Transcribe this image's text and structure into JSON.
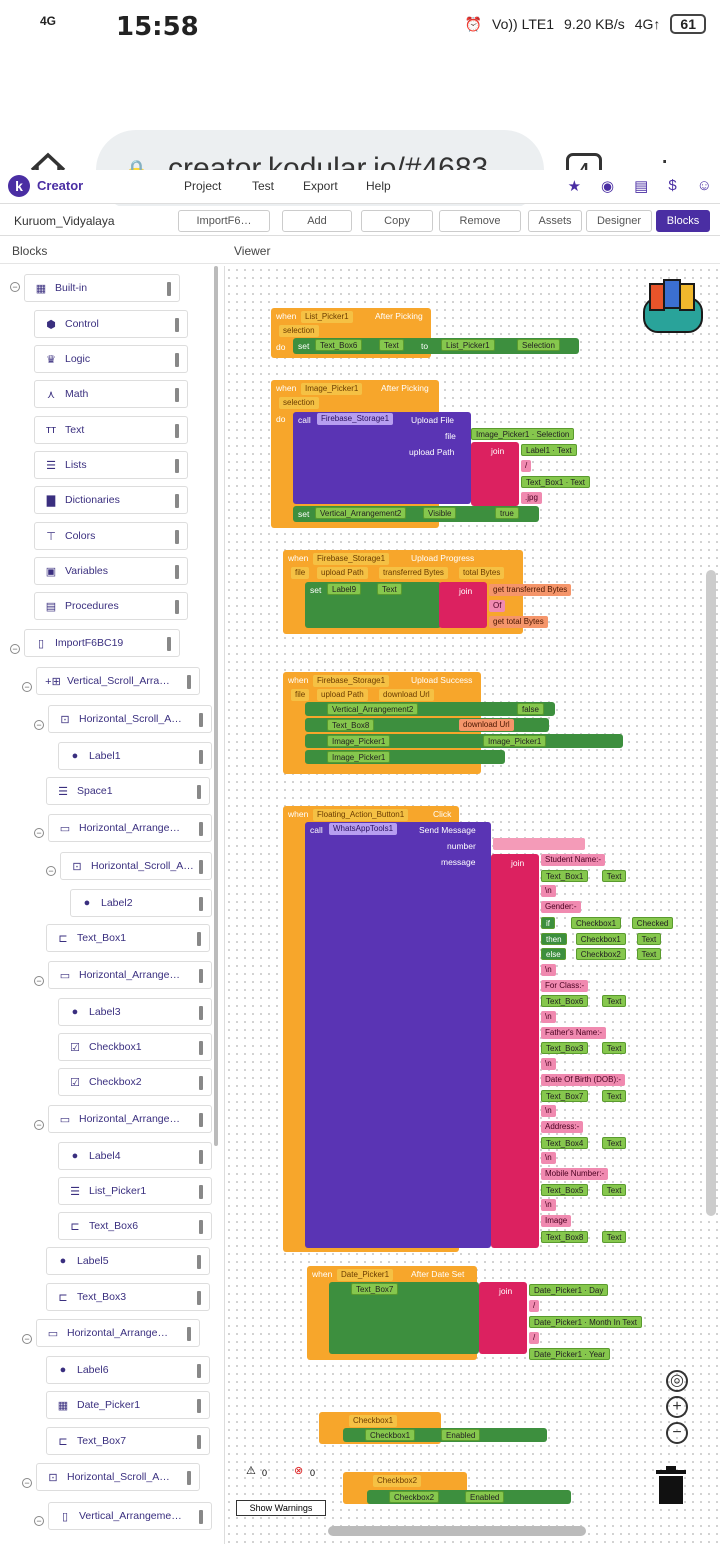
{
  "status": {
    "time": "15:58",
    "signal": "4G",
    "net": "Vo)) LTE1",
    "speed": "9.20 KB/s",
    "net2": "4G↑",
    "battery": "61"
  },
  "browser": {
    "url": "creator.kodular.io/#4683",
    "tabs": "4"
  },
  "app": {
    "brand": "Creator",
    "menu": [
      "Project",
      "Test",
      "Export",
      "Help"
    ]
  },
  "toolbar": {
    "project": "Kuruom_Vidyalaya",
    "screen": "ImportF6…",
    "add": "Add",
    "copy": "Copy",
    "remove": "Remove",
    "assets": "Assets",
    "designer": "Designer",
    "blocks": "Blocks"
  },
  "panes": {
    "blocks": "Blocks",
    "viewer": "Viewer"
  },
  "tree": [
    "Built-in",
    "Control",
    "Logic",
    "Math",
    "Text",
    "Lists",
    "Dictionaries",
    "Colors",
    "Variables",
    "Procedures",
    "ImportF6BC19",
    "Vertical_Scroll_Arra…",
    "Horizontal_Scroll_A…",
    "Label1",
    "Space1",
    "Horizontal_Arrange…",
    "Horizontal_Scroll_A…",
    "Label2",
    "Text_Box1",
    "Horizontal_Arrange…",
    "Label3",
    "Checkbox1",
    "Checkbox2",
    "Horizontal_Arrange…",
    "Label4",
    "List_Picker1",
    "Text_Box6",
    "Label5",
    "Text_Box3",
    "Horizontal_Arrange…",
    "Label6",
    "Date_Picker1",
    "Text_Box7",
    "Horizontal_Scroll_A…",
    "Vertical_Arrangeme…"
  ],
  "b1": {
    "when": "when",
    "comp": "List_Picker1",
    "ev": "After Picking",
    "param": "selection",
    "do": "do",
    "set": "set",
    "tgt": "Text_Box6",
    "prop": "Text",
    "to": "to",
    "src": "List_Picker1",
    "srcp": "Selection"
  },
  "b2": {
    "comp": "Image_Picker1",
    "ev": "After Picking",
    "param": "selection",
    "call": "call",
    "fs": "Firebase_Storage1",
    "m": "Upload File",
    "file": "file",
    "up": "upload Path",
    "ip": "Image_Picker1",
    "sel": "Selection",
    "join": "join",
    "l1": "Label1",
    "t": "Text",
    "slash": "/",
    "tb1": "Text_Box1",
    "jpg": ".jpg",
    "va": "Vertical_Arrangement2",
    "vis": "Visible",
    "tr": "true"
  },
  "b3": {
    "comp": "Firebase_Storage1",
    "ev": "Upload Progress",
    "p1": "file",
    "p2": "upload Path",
    "p3": "transferred Bytes",
    "p4": "total Bytes",
    "tgt": "Label9",
    "get": "get",
    "tb": "transferred Bytes",
    "of": " Of ",
    "tot": "total Bytes"
  },
  "b4": {
    "comp": "Firebase_Storage1",
    "ev": "Upload Success",
    "p1": "file",
    "p2": "upload Path",
    "p3": "download Url",
    "va": "Vertical_Arrangement2",
    "fal": "false",
    "tb8": "Text_Box8",
    "du": "download Url",
    "ip": "Image_Picker1",
    "img": "Image",
    "sel": "Selection"
  },
  "b5": {
    "comp": "Floating_Action_Button1",
    "ev": "Click",
    "wa": "WhatsAppTools1",
    "m": "Send Message",
    "num": "number",
    "msg": "message",
    "lines": [
      "Student Name:-",
      "Text_Box1",
      "\\n",
      "Gender:-",
      "if",
      "Checkbox1",
      "Checked",
      "then",
      "Checkbox1",
      "Text",
      "else",
      "Checkbox2",
      "\\n",
      "For Class:-",
      "Text_Box6",
      "\\n",
      "Father's Name:-",
      "Text_Box3",
      "\\n",
      "Date Of Birth (DOB):-",
      "Text_Box7",
      "\\n",
      "Address:-",
      "Text_Box4",
      "\\n",
      "Mobile Number:-",
      "Text_Box5",
      "\\n",
      "Image",
      "Text_Box8"
    ]
  },
  "b6": {
    "comp": "Date_Picker1",
    "ev": "After Date Set",
    "tgt": "Text_Box7",
    "day": "Day",
    "mon": "Month In Text",
    "yr": "Year"
  },
  "b7": {
    "comp": "Checkbox1",
    "ev": "Click",
    "en": "Enabled"
  },
  "b8": {
    "comp": "Checkbox2",
    "ev": "Click",
    "en": "Enabled"
  },
  "warnings": {
    "w": "0",
    "e": "0",
    "btn": "Show Warnings"
  }
}
